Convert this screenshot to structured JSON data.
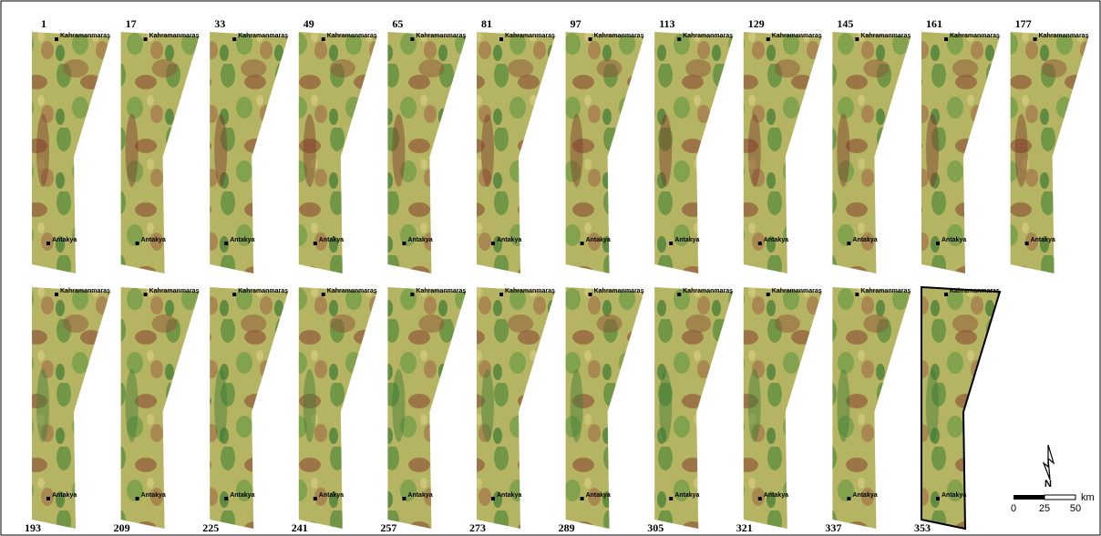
{
  "panels": [
    {
      "label": "1"
    },
    {
      "label": "17"
    },
    {
      "label": "33"
    },
    {
      "label": "49"
    },
    {
      "label": "65"
    },
    {
      "label": "81"
    },
    {
      "label": "97"
    },
    {
      "label": "113"
    },
    {
      "label": "129"
    },
    {
      "label": "145"
    },
    {
      "label": "161"
    },
    {
      "label": "177"
    },
    {
      "label": "193"
    },
    {
      "label": "209"
    },
    {
      "label": "225"
    },
    {
      "label": "241"
    },
    {
      "label": "257"
    },
    {
      "label": "273"
    },
    {
      "label": "289"
    },
    {
      "label": "305"
    },
    {
      "label": "321"
    },
    {
      "label": "337"
    },
    {
      "label": "353"
    }
  ],
  "cities": {
    "north": "Kahramanmaraş",
    "south": "Antakya"
  },
  "scale_bar": {
    "ticks": [
      "0",
      "25",
      "50"
    ],
    "unit": "km"
  },
  "north_arrow": "N"
}
